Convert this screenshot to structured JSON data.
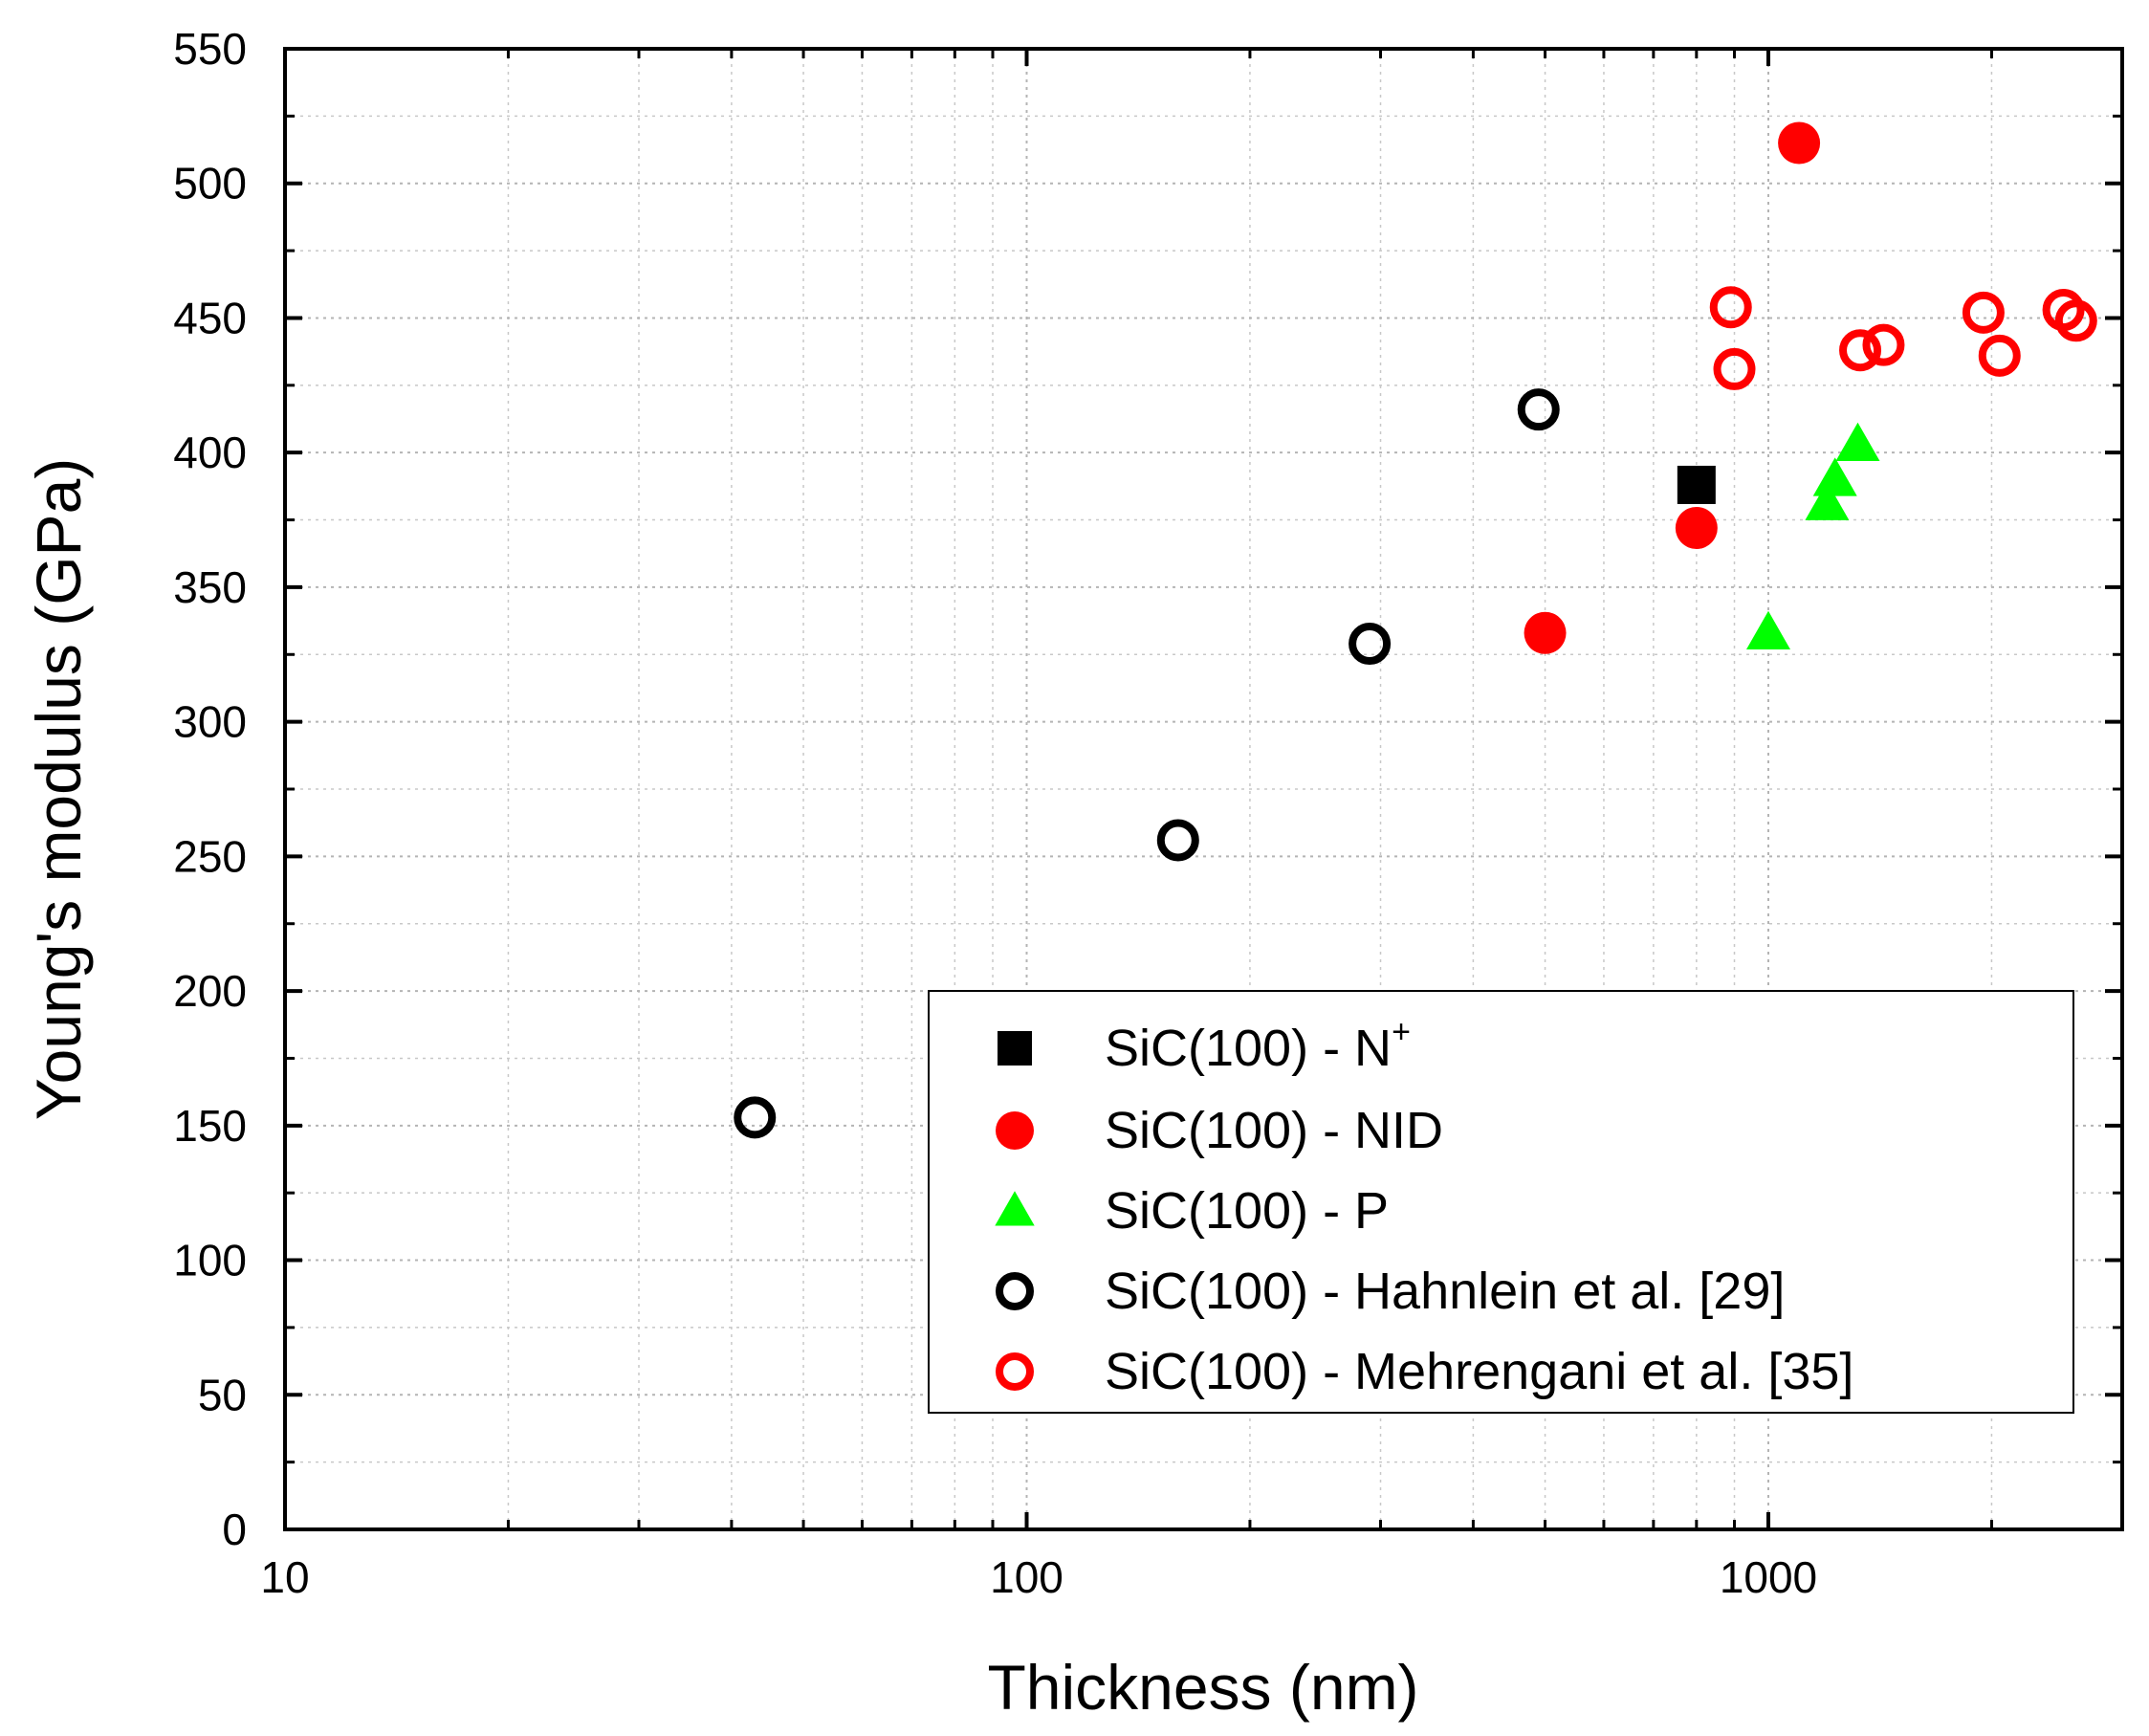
{
  "chart_data": {
    "type": "scatter",
    "title": "",
    "xlabel": "Thickness (nm)",
    "ylabel": "Young's modulus (GPa)",
    "xscale": "log",
    "xlim": [
      10,
      3000
    ],
    "ylim": [
      0,
      550
    ],
    "grid": true,
    "legend_position": "bottom-right",
    "x_ticks": [
      10,
      100,
      1000
    ],
    "x_tick_labels": [
      "10",
      "100",
      "1000"
    ],
    "y_ticks": [
      0,
      50,
      100,
      150,
      200,
      250,
      300,
      350,
      400,
      450,
      500,
      550
    ],
    "y_tick_labels": [
      "0",
      "50",
      "100",
      "150",
      "200",
      "250",
      "300",
      "350",
      "400",
      "450",
      "500",
      "550"
    ],
    "series": [
      {
        "name": "SiC(100) - N+",
        "legend_text": "SiC(100) - N",
        "legend_sup": "+",
        "marker": "square",
        "filled": true,
        "color": "#000000",
        "points": [
          {
            "x": 800,
            "y": 388
          }
        ]
      },
      {
        "name": "SiC(100) - NID",
        "legend_text": "SiC(100) - NID",
        "marker": "circle",
        "filled": true,
        "color": "#ff0000",
        "points": [
          {
            "x": 500,
            "y": 333
          },
          {
            "x": 800,
            "y": 372
          },
          {
            "x": 1100,
            "y": 515
          }
        ]
      },
      {
        "name": "SiC(100) - P",
        "legend_text": "SiC(100) - P",
        "marker": "triangle",
        "filled": true,
        "color": "#00ff00",
        "points": [
          {
            "x": 1000,
            "y": 333
          },
          {
            "x": 1200,
            "y": 381
          },
          {
            "x": 1230,
            "y": 390
          },
          {
            "x": 1320,
            "y": 403
          }
        ]
      },
      {
        "name": "SiC(100) - Hahnlein et al. [29]",
        "legend_text": "SiC(100) - Hahnlein et al. [29]",
        "marker": "circle",
        "filled": false,
        "color": "#000000",
        "points": [
          {
            "x": 43,
            "y": 153
          },
          {
            "x": 160,
            "y": 256
          },
          {
            "x": 290,
            "y": 329
          },
          {
            "x": 490,
            "y": 416
          }
        ]
      },
      {
        "name": "SiC(100) - Mehrengani et al. [35]",
        "legend_text": "SiC(100) - Mehrengani et al. [35]",
        "marker": "circle",
        "filled": false,
        "color": "#ff0000",
        "points": [
          {
            "x": 890,
            "y": 454
          },
          {
            "x": 900,
            "y": 431
          },
          {
            "x": 1330,
            "y": 438
          },
          {
            "x": 1430,
            "y": 440
          },
          {
            "x": 1950,
            "y": 452
          },
          {
            "x": 2050,
            "y": 436
          },
          {
            "x": 2500,
            "y": 453
          },
          {
            "x": 2600,
            "y": 449
          }
        ]
      }
    ]
  }
}
